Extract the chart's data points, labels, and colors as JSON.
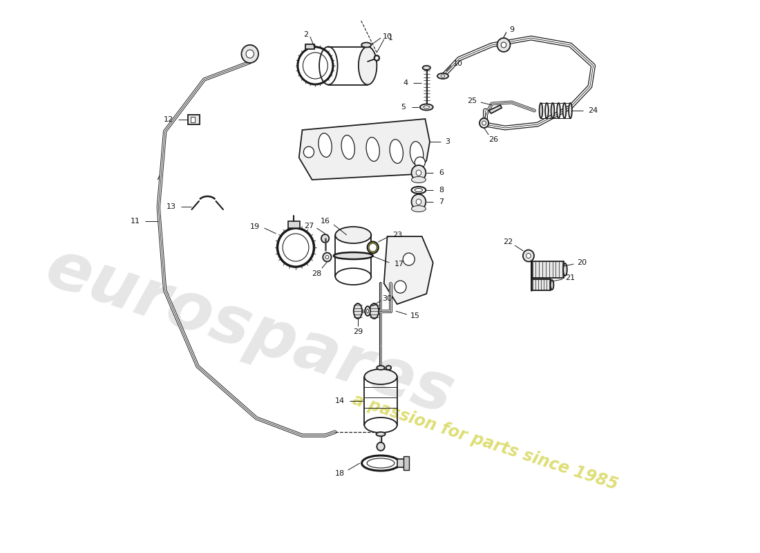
{
  "bg": "#ffffff",
  "lc": "#1a1a1a",
  "wm1": "eurospares",
  "wm2": "a passion for parts since 1985",
  "wm1_color": "#c8c8c8",
  "wm2_color": "#d8d860"
}
